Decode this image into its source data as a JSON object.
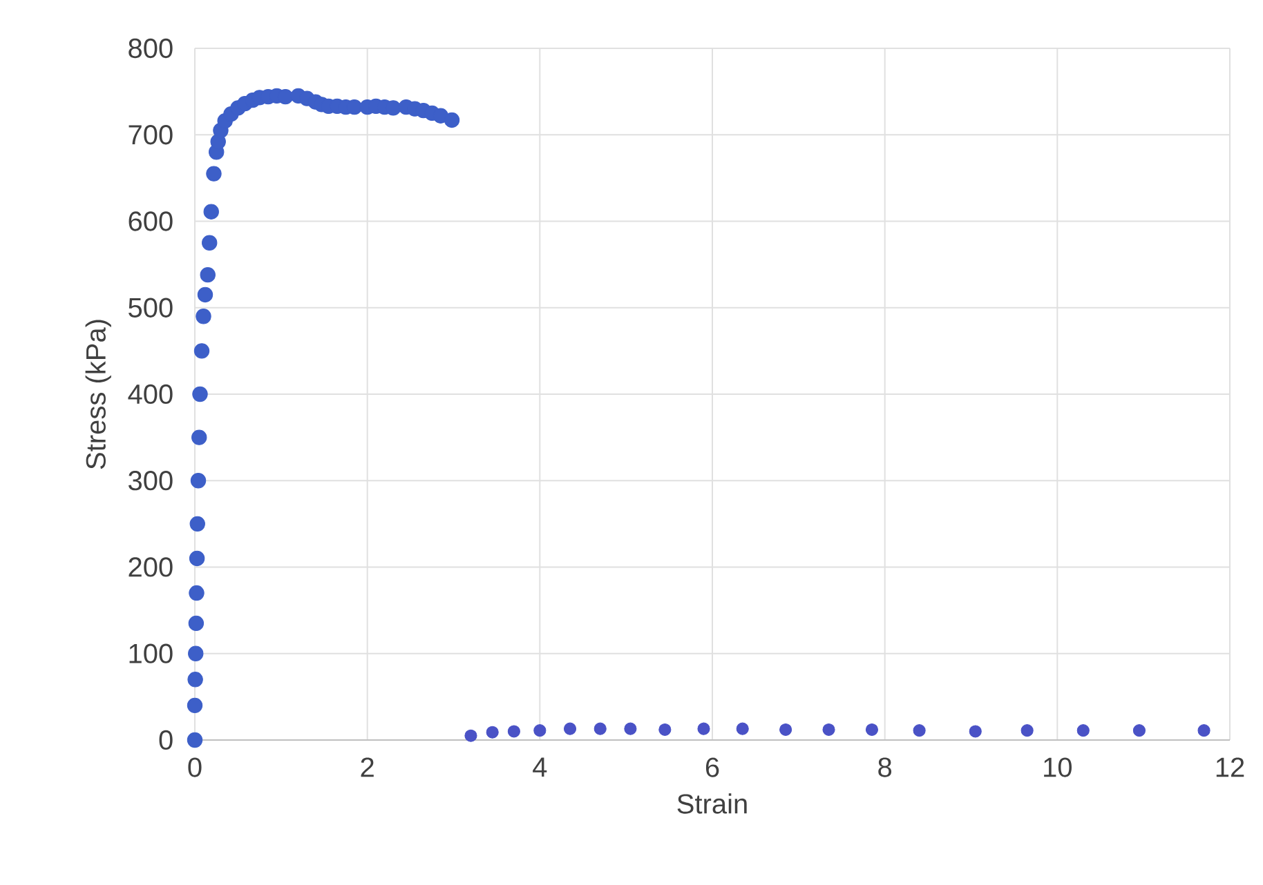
{
  "chart_data": {
    "type": "scatter",
    "xlabel": "Strain",
    "ylabel": "Stress (kPa)",
    "xlim": [
      0,
      12
    ],
    "ylim": [
      0,
      800
    ],
    "xticks": [
      0,
      2,
      4,
      6,
      8,
      10,
      12
    ],
    "yticks": [
      0,
      100,
      200,
      300,
      400,
      500,
      600,
      700,
      800
    ],
    "grid": true,
    "marker": "circle",
    "series": [
      {
        "color": "#3d5fc8",
        "x": [
          0,
          0.0,
          0.005,
          0.01,
          0.015,
          0.02,
          0.025,
          0.03,
          0.04,
          0.05,
          0.06,
          0.08,
          0.1,
          0.12,
          0.15,
          0.17,
          0.19,
          0.22,
          0.25,
          0.27,
          0.3,
          0.35,
          0.42,
          0.5,
          0.58,
          0.67,
          0.75,
          0.85,
          0.95,
          1.05,
          1.2,
          1.3,
          1.4,
          1.47,
          1.55,
          1.65,
          1.75,
          1.85,
          2.0,
          2.1,
          2.2,
          2.3,
          2.45,
          2.55,
          2.65,
          2.75,
          2.85,
          2.98
        ],
        "values": [
          0,
          40,
          70,
          100,
          135,
          170,
          210,
          250,
          300,
          350,
          400,
          450,
          490,
          515,
          538,
          575,
          611,
          655,
          680,
          692,
          705,
          716,
          724,
          731,
          736,
          740,
          743,
          744,
          745,
          744,
          745,
          742,
          738,
          735,
          733,
          733,
          732,
          732,
          732,
          733,
          732,
          731,
          732,
          730,
          728,
          725,
          722,
          717
        ]
      },
      {
        "color": "#4a52c6",
        "x": [
          3.2,
          3.45,
          3.7,
          4.0,
          4.35,
          4.7,
          5.05,
          5.45,
          5.9,
          6.35,
          6.85,
          7.35,
          7.85,
          8.4,
          9.05,
          9.65,
          10.3,
          10.95,
          11.7
        ],
        "values": [
          5,
          9,
          10,
          11,
          13,
          13,
          13,
          12,
          13,
          13,
          12,
          12,
          12,
          11,
          10,
          11,
          11,
          11,
          11
        ]
      }
    ]
  }
}
